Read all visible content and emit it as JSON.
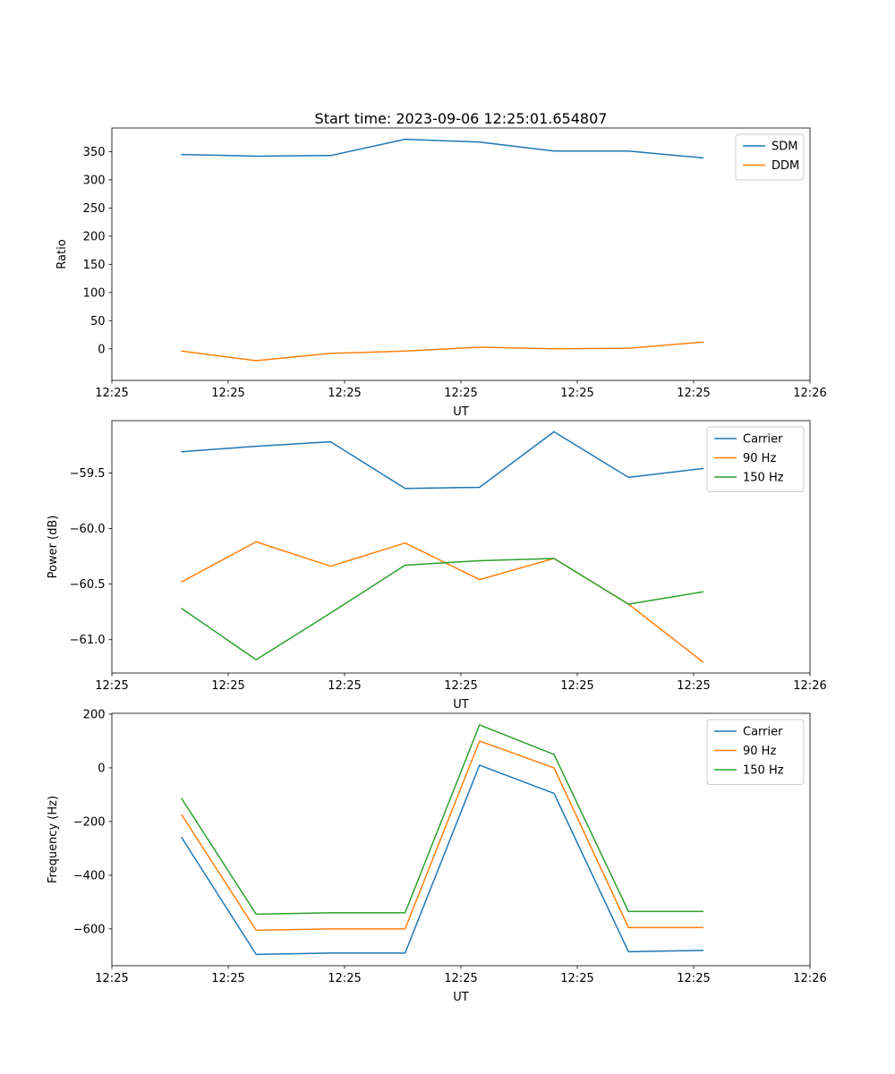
{
  "figure": {
    "title": "Start time: 2023-09-06 12:25:01.654807",
    "background": "#ffffff"
  },
  "chart_data": [
    {
      "type": "line",
      "xlabel": "UT",
      "ylabel": "Ratio",
      "x": [
        6,
        12.4,
        18.8,
        25.2,
        31.6,
        38,
        44.4,
        50.8
      ],
      "xlim": [
        0,
        60
      ],
      "ylim": [
        -56,
        392
      ],
      "xticks": {
        "values": [
          0,
          10,
          20,
          30,
          40,
          50,
          60
        ],
        "labels": [
          "12:25",
          "12:25",
          "12:25",
          "12:25",
          "12:25",
          "12:25",
          "12:26"
        ]
      },
      "yticks": {
        "values": [
          0,
          50,
          100,
          150,
          200,
          250,
          300,
          350
        ],
        "labels": [
          "0",
          "50",
          "100",
          "150",
          "200",
          "250",
          "300",
          "350"
        ]
      },
      "legend": {
        "position": "upper right"
      },
      "grid": false,
      "series": [
        {
          "name": "SDM",
          "color": "#1f77b4",
          "values": [
            345,
            342,
            343,
            372,
            367,
            351,
            351,
            339
          ]
        },
        {
          "name": "DDM",
          "color": "#ff7f0e",
          "values": [
            -4,
            -21,
            -8,
            -4,
            3,
            0,
            1,
            12
          ]
        }
      ]
    },
    {
      "type": "line",
      "xlabel": "UT",
      "ylabel": "Power (dB)",
      "x": [
        6,
        12.4,
        18.8,
        25.2,
        31.6,
        38,
        44.4,
        50.8
      ],
      "xlim": [
        0,
        60
      ],
      "ylim": [
        -61.3,
        -59.03
      ],
      "xticks": {
        "values": [
          0,
          10,
          20,
          30,
          40,
          50,
          60
        ],
        "labels": [
          "12:25",
          "12:25",
          "12:25",
          "12:25",
          "12:25",
          "12:25",
          "12:26"
        ]
      },
      "yticks": {
        "values": [
          -59.5,
          -60.0,
          -60.5,
          -61.0
        ],
        "labels": [
          "−59.5",
          "−60.0",
          "−60.5",
          "−61.0"
        ]
      },
      "legend": {
        "position": "upper right"
      },
      "grid": false,
      "series": [
        {
          "name": "Carrier",
          "color": "#1f77b4",
          "values": [
            -59.31,
            -59.26,
            -59.22,
            -59.64,
            -59.63,
            -59.13,
            -59.54,
            -59.46
          ]
        },
        {
          "name": "90 Hz",
          "color": "#ff7f0e",
          "values": [
            -60.48,
            -60.12,
            -60.34,
            -60.13,
            -60.46,
            -60.27,
            -60.68,
            -61.2
          ]
        },
        {
          "name": "150 Hz",
          "color": "#2ca02c",
          "values": [
            -60.72,
            -61.18,
            -60.76,
            -60.33,
            -60.29,
            -60.27,
            -60.68,
            -60.57
          ]
        }
      ]
    },
    {
      "type": "line",
      "xlabel": "UT",
      "ylabel": "Frequency (Hz)",
      "x": [
        6,
        12.4,
        18.8,
        25.2,
        31.6,
        38,
        44.4,
        50.8
      ],
      "xlim": [
        0,
        60
      ],
      "ylim": [
        -737,
        203
      ],
      "xticks": {
        "values": [
          0,
          10,
          20,
          30,
          40,
          50,
          60
        ],
        "labels": [
          "12:25",
          "12:25",
          "12:25",
          "12:25",
          "12:25",
          "12:25",
          "12:26"
        ]
      },
      "yticks": {
        "values": [
          200,
          0,
          -200,
          -400,
          -600
        ],
        "labels": [
          "200",
          "0",
          "−200",
          "−400",
          "−600"
        ]
      },
      "legend": {
        "position": "upper right"
      },
      "grid": false,
      "series": [
        {
          "name": "Carrier",
          "color": "#1f77b4",
          "values": [
            -260,
            -695,
            -690,
            -690,
            10,
            -95,
            -685,
            -680
          ]
        },
        {
          "name": "90 Hz",
          "color": "#ff7f0e",
          "values": [
            -175,
            -605,
            -600,
            -600,
            100,
            0,
            -595,
            -595
          ]
        },
        {
          "name": "150 Hz",
          "color": "#2ca02c",
          "values": [
            -115,
            -545,
            -540,
            -540,
            160,
            50,
            -535,
            -535
          ]
        }
      ]
    }
  ]
}
